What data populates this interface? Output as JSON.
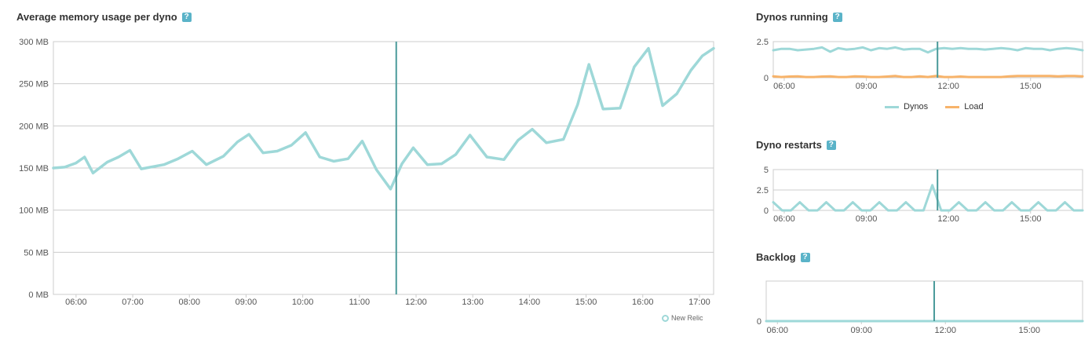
{
  "colors": {
    "series_main": "#9ed8d8",
    "series_load": "#f7b36a",
    "marker": "#4a9a9a",
    "grid": "#cccccc",
    "help_bg": "#5ab3c8"
  },
  "panels": {
    "memory": {
      "title": "Average memory usage per dyno",
      "help": "?",
      "attribution": "New Relic"
    },
    "dynos": {
      "title": "Dynos running",
      "help": "?",
      "legend": [
        "Dynos",
        "Load"
      ]
    },
    "restarts": {
      "title": "Dyno restarts",
      "help": "?"
    },
    "backlog": {
      "title": "Backlog",
      "help": "?"
    }
  },
  "chart_data": [
    {
      "id": "memory",
      "type": "line",
      "title": "Average memory usage per dyno",
      "x_ticks": [
        "06:00",
        "07:00",
        "08:00",
        "09:00",
        "10:00",
        "11:00",
        "12:00",
        "13:00",
        "14:00",
        "15:00",
        "16:00",
        "17:00"
      ],
      "y_ticks": [
        "0 MB",
        "50 MB",
        "100 MB",
        "150 MB",
        "200 MB",
        "250 MB",
        "300 MB"
      ],
      "ylim": [
        0,
        300
      ],
      "x_range_hours": [
        5.6,
        17.25
      ],
      "marker_hour": 11.65,
      "series": [
        {
          "x": [
            5.6,
            5.8,
            6.0,
            6.15,
            6.3,
            6.55,
            6.75,
            6.95,
            7.15,
            7.55,
            7.8,
            8.05,
            8.3,
            8.6,
            8.85,
            9.05,
            9.3,
            9.55,
            9.8,
            10.05,
            10.3,
            10.55,
            10.8,
            11.05,
            11.3,
            11.55,
            11.75,
            11.95,
            12.2,
            12.45,
            12.7,
            12.95,
            13.25,
            13.55,
            13.8,
            14.05,
            14.3,
            14.6,
            14.85,
            15.05,
            15.3,
            15.6,
            15.85,
            16.1,
            16.35,
            16.6,
            16.85,
            17.05,
            17.25
          ],
          "y": [
            150,
            151,
            156,
            163,
            144,
            157,
            163,
            171,
            149,
            154,
            161,
            170,
            154,
            164,
            181,
            190,
            168,
            170,
            177,
            192,
            163,
            158,
            161,
            182,
            148,
            125,
            155,
            174,
            154,
            155,
            166,
            189,
            163,
            160,
            183,
            196,
            180,
            184,
            225,
            273,
            220,
            221,
            270,
            292,
            224,
            238,
            266,
            283,
            292
          ]
        }
      ]
    },
    {
      "id": "dynos",
      "type": "line",
      "title": "Dynos running",
      "x_ticks": [
        "06:00",
        "09:00",
        "12:00",
        "15:00"
      ],
      "y_ticks": [
        "0",
        "2.5"
      ],
      "ylim": [
        0,
        2.5
      ],
      "marker_hour": 11.6,
      "series": [
        {
          "name": "Dynos",
          "y": [
            1.9,
            2.0,
            2.0,
            1.9,
            1.95,
            2.0,
            2.1,
            1.8,
            2.05,
            1.95,
            2.0,
            2.1,
            1.9,
            2.05,
            2.0,
            2.1,
            1.95,
            2.0,
            2.0,
            1.75,
            2.0,
            2.05,
            2.0,
            2.05,
            2.0,
            2.0,
            1.95,
            2.0,
            2.05,
            2.0,
            1.9,
            2.05,
            2.0,
            2.0,
            1.9,
            2.0,
            2.05,
            2.0,
            1.9
          ]
        },
        {
          "name": "Load",
          "y": [
            0.1,
            0.05,
            0.08,
            0.1,
            0.05,
            0.05,
            0.08,
            0.1,
            0.05,
            0.05,
            0.1,
            0.08,
            0.05,
            0.05,
            0.08,
            0.12,
            0.05,
            0.05,
            0.1,
            0.05,
            0.12,
            0.05,
            0.05,
            0.08,
            0.05,
            0.05,
            0.05,
            0.05,
            0.05,
            0.1,
            0.12,
            0.12,
            0.12,
            0.12,
            0.12,
            0.1,
            0.12,
            0.12,
            0.1
          ]
        }
      ]
    },
    {
      "id": "restarts",
      "type": "line",
      "title": "Dyno restarts",
      "x_ticks": [
        "06:00",
        "09:00",
        "12:00",
        "15:00"
      ],
      "y_ticks": [
        "0",
        "2.5",
        "5"
      ],
      "ylim": [
        0,
        5
      ],
      "marker_hour": 11.6,
      "series": [
        {
          "y": [
            1,
            0,
            0,
            1,
            0,
            0,
            1,
            0,
            0,
            1,
            0,
            0,
            1,
            0,
            0,
            1,
            0,
            0,
            3.1,
            0,
            0,
            1,
            0,
            0,
            1,
            0,
            0,
            1,
            0,
            0,
            1,
            0,
            0,
            1,
            0,
            0
          ]
        }
      ]
    },
    {
      "id": "backlog",
      "type": "line",
      "title": "Backlog",
      "x_ticks": [
        "06:00",
        "09:00",
        "12:00",
        "15:00"
      ],
      "y_ticks": [
        "0"
      ],
      "ylim": [
        0,
        1
      ],
      "marker_hour": 11.6,
      "series": [
        {
          "y": [
            0,
            0
          ]
        }
      ]
    }
  ]
}
